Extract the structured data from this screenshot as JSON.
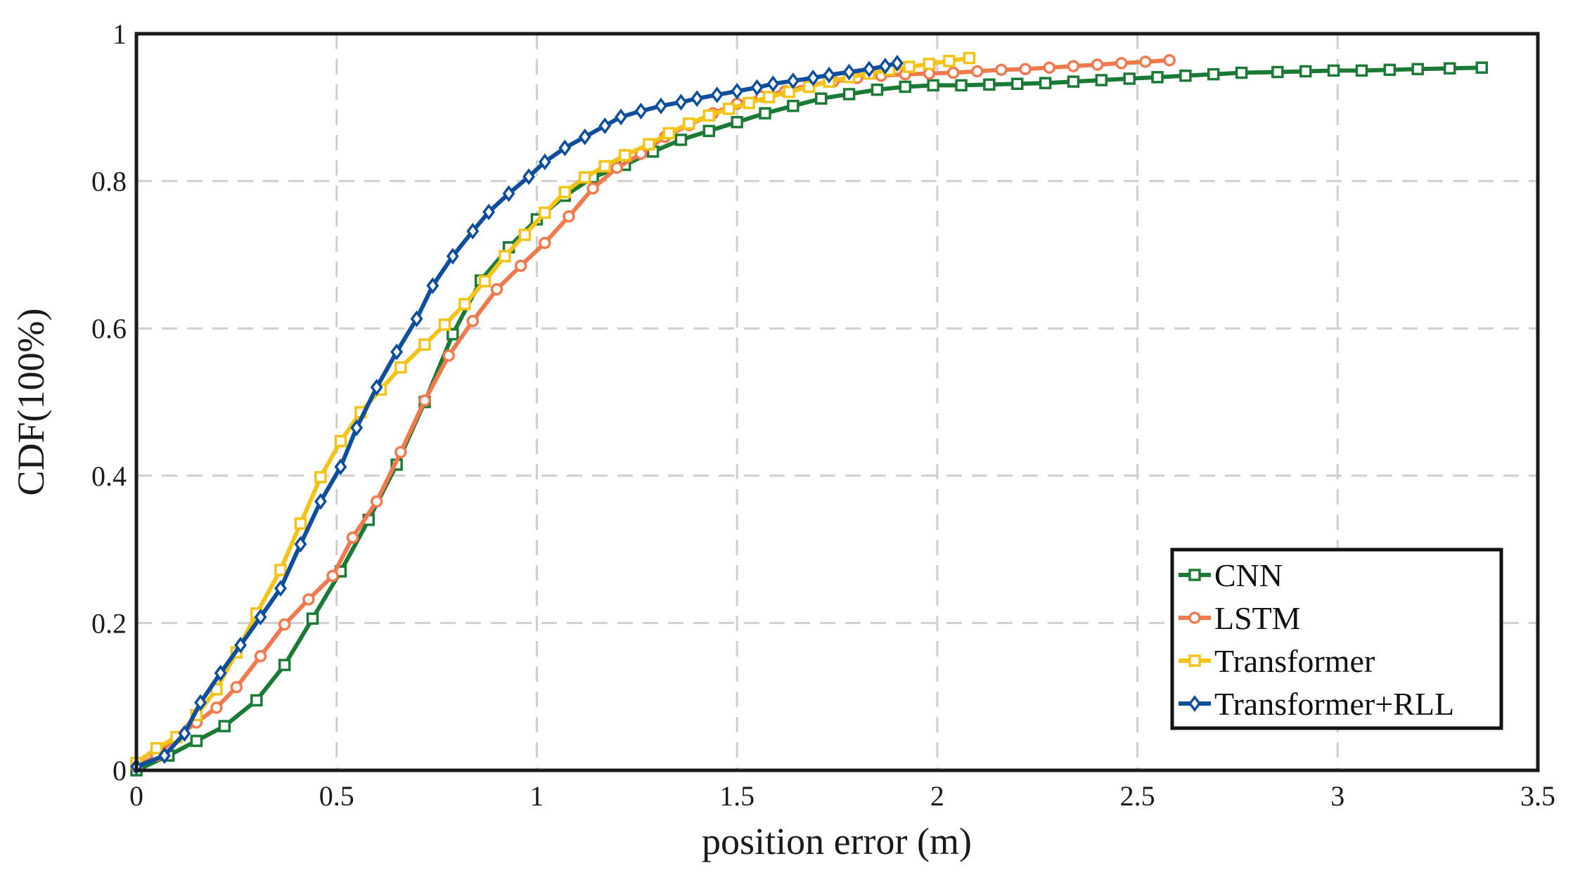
{
  "chart_data": {
    "type": "line",
    "title": "",
    "xlabel": "position error (m)",
    "ylabel": "CDF(100%)",
    "xlim": [
      0,
      3.5
    ],
    "ylim": [
      0,
      1
    ],
    "xticks": [
      0,
      0.5,
      1,
      1.5,
      2,
      2.5,
      3,
      3.5
    ],
    "xtick_labels": [
      "0",
      "0.5",
      "1",
      "1.5",
      "2",
      "2.5",
      "3",
      "3.5"
    ],
    "yticks": [
      0,
      0.2,
      0.4,
      0.6,
      0.8,
      1
    ],
    "ytick_labels": [
      "0",
      "0.2",
      "0.4",
      "0.6",
      "0.8",
      "1"
    ],
    "grid": true,
    "legend_position": "bottom-right",
    "series": [
      {
        "name": "CNN",
        "color": "#1b7a35",
        "marker": "square",
        "x": [
          0.0,
          0.08,
          0.15,
          0.22,
          0.3,
          0.37,
          0.44,
          0.51,
          0.58,
          0.65,
          0.72,
          0.79,
          0.86,
          0.93,
          1.0,
          1.07,
          1.14,
          1.22,
          1.29,
          1.36,
          1.43,
          1.5,
          1.57,
          1.64,
          1.71,
          1.78,
          1.85,
          1.92,
          1.99,
          2.06,
          2.13,
          2.2,
          2.27,
          2.34,
          2.41,
          2.48,
          2.55,
          2.62,
          2.69,
          2.76,
          2.85,
          2.92,
          2.99,
          3.06,
          3.13,
          3.2,
          3.28,
          3.36
        ],
        "values": [
          0.0,
          0.02,
          0.04,
          0.06,
          0.095,
          0.143,
          0.206,
          0.27,
          0.34,
          0.415,
          0.5,
          0.592,
          0.665,
          0.71,
          0.748,
          0.78,
          0.805,
          0.822,
          0.84,
          0.856,
          0.868,
          0.88,
          0.892,
          0.902,
          0.912,
          0.918,
          0.924,
          0.928,
          0.93,
          0.93,
          0.931,
          0.932,
          0.933,
          0.935,
          0.937,
          0.939,
          0.941,
          0.943,
          0.945,
          0.947,
          0.948,
          0.949,
          0.95,
          0.95,
          0.951,
          0.952,
          0.953,
          0.954
        ]
      },
      {
        "name": "LSTM",
        "color": "#f07a4e",
        "marker": "circle",
        "x": [
          0.0,
          0.05,
          0.1,
          0.15,
          0.2,
          0.25,
          0.31,
          0.37,
          0.43,
          0.49,
          0.54,
          0.6,
          0.66,
          0.72,
          0.78,
          0.84,
          0.9,
          0.96,
          1.02,
          1.08,
          1.14,
          1.2,
          1.26,
          1.32,
          1.38,
          1.44,
          1.5,
          1.56,
          1.62,
          1.68,
          1.74,
          1.8,
          1.86,
          1.92,
          1.98,
          2.04,
          2.1,
          2.16,
          2.22,
          2.28,
          2.34,
          2.4,
          2.46,
          2.52,
          2.58
        ],
        "values": [
          0.005,
          0.02,
          0.045,
          0.065,
          0.085,
          0.113,
          0.155,
          0.198,
          0.232,
          0.264,
          0.316,
          0.365,
          0.432,
          0.502,
          0.563,
          0.61,
          0.653,
          0.685,
          0.716,
          0.752,
          0.79,
          0.818,
          0.837,
          0.86,
          0.876,
          0.892,
          0.905,
          0.915,
          0.922,
          0.93,
          0.935,
          0.94,
          0.943,
          0.945,
          0.946,
          0.947,
          0.949,
          0.951,
          0.952,
          0.954,
          0.956,
          0.958,
          0.96,
          0.962,
          0.964
        ]
      },
      {
        "name": "Transformer",
        "color": "#f5c216",
        "marker": "square",
        "x": [
          0.0,
          0.05,
          0.1,
          0.15,
          0.2,
          0.25,
          0.3,
          0.36,
          0.41,
          0.46,
          0.51,
          0.56,
          0.61,
          0.66,
          0.72,
          0.77,
          0.82,
          0.87,
          0.92,
          0.97,
          1.02,
          1.07,
          1.12,
          1.17,
          1.22,
          1.28,
          1.33,
          1.38,
          1.43,
          1.48,
          1.53,
          1.58,
          1.63,
          1.68,
          1.73,
          1.78,
          1.83,
          1.88,
          1.93,
          1.98,
          2.03,
          2.08
        ],
        "values": [
          0.01,
          0.03,
          0.045,
          0.075,
          0.11,
          0.16,
          0.213,
          0.272,
          0.335,
          0.398,
          0.447,
          0.486,
          0.517,
          0.547,
          0.578,
          0.605,
          0.633,
          0.664,
          0.698,
          0.727,
          0.757,
          0.785,
          0.805,
          0.82,
          0.835,
          0.85,
          0.865,
          0.878,
          0.889,
          0.898,
          0.906,
          0.914,
          0.921,
          0.928,
          0.935,
          0.941,
          0.946,
          0.951,
          0.955,
          0.959,
          0.963,
          0.967
        ]
      },
      {
        "name": "Transformer+RLL",
        "color": "#0d4f9c",
        "marker": "diamond",
        "x": [
          0.0,
          0.07,
          0.12,
          0.16,
          0.21,
          0.26,
          0.31,
          0.36,
          0.41,
          0.46,
          0.51,
          0.55,
          0.6,
          0.65,
          0.7,
          0.74,
          0.79,
          0.84,
          0.88,
          0.93,
          0.98,
          1.02,
          1.07,
          1.12,
          1.17,
          1.21,
          1.26,
          1.31,
          1.36,
          1.4,
          1.45,
          1.5,
          1.55,
          1.59,
          1.64,
          1.69,
          1.73,
          1.78,
          1.83,
          1.87,
          1.9
        ],
        "values": [
          0.005,
          0.02,
          0.05,
          0.092,
          0.132,
          0.17,
          0.208,
          0.247,
          0.307,
          0.365,
          0.412,
          0.465,
          0.52,
          0.568,
          0.613,
          0.658,
          0.698,
          0.732,
          0.758,
          0.783,
          0.806,
          0.826,
          0.845,
          0.86,
          0.875,
          0.887,
          0.895,
          0.902,
          0.907,
          0.912,
          0.917,
          0.922,
          0.927,
          0.932,
          0.936,
          0.94,
          0.944,
          0.948,
          0.952,
          0.956,
          0.96
        ]
      }
    ]
  }
}
